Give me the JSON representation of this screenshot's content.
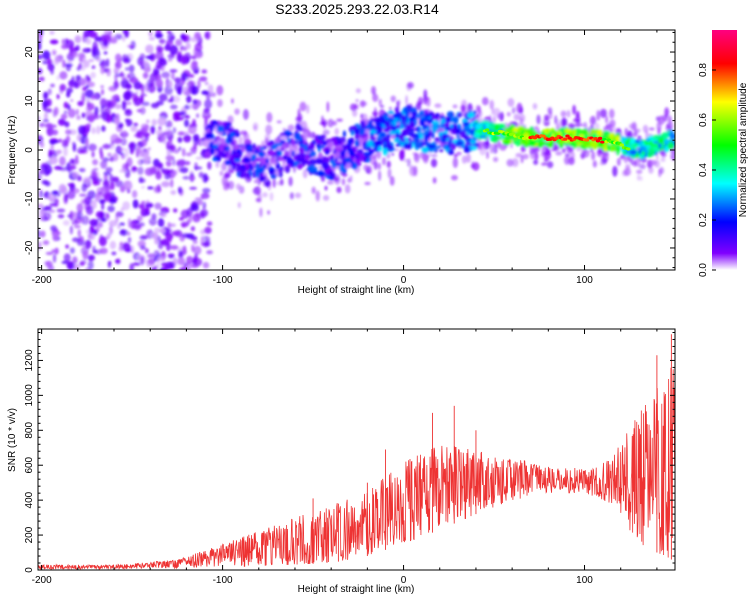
{
  "title": "S233.2025.293.22.03.R14",
  "chart_data": [
    {
      "type": "heatmap",
      "xlabel": "Height of straight line (km)",
      "ylabel": "Frequency (Hz)",
      "xlim": [
        -202,
        150
      ],
      "ylim": [
        -24.5,
        24.5
      ],
      "x_ticks": [
        -200,
        -100,
        0,
        100
      ],
      "x_tick_labels": [
        "-200",
        "-100",
        "0",
        "100"
      ],
      "y_ticks": [
        -20,
        -10,
        0,
        10,
        20
      ],
      "y_tick_labels": [
        "-20",
        "-10",
        "0",
        "10",
        "20"
      ],
      "ridge": [
        {
          "x": -100,
          "y": 2
        },
        {
          "x": -80,
          "y": -4
        },
        {
          "x": -60,
          "y": 1
        },
        {
          "x": -40,
          "y": -2
        },
        {
          "x": -20,
          "y": 2
        },
        {
          "x": 0,
          "y": 5
        },
        {
          "x": 20,
          "y": 3
        },
        {
          "x": 45,
          "y": 4
        },
        {
          "x": 70,
          "y": 2.5
        },
        {
          "x": 90,
          "y": 2.5
        },
        {
          "x": 110,
          "y": 2
        },
        {
          "x": 130,
          "y": 0
        },
        {
          "x": 148,
          "y": 2
        }
      ],
      "colorbar": {
        "label": "Normalized spectral amplitude",
        "range": [
          0,
          0.96
        ],
        "ticks": [
          0.0,
          0.2,
          0.4,
          0.6,
          0.8
        ],
        "tick_labels": [
          "0.0",
          "0.2",
          "0.4",
          "0.6",
          "0.8"
        ],
        "colors": [
          "#ffffff",
          "#8000ff",
          "#0000ff",
          "#00ffff",
          "#00ff00",
          "#ffff00",
          "#ff0000",
          "#ff0080"
        ]
      }
    },
    {
      "type": "line",
      "xlabel": "Height of straight line (km)",
      "ylabel": "SNR (10 * v/v)",
      "xlim": [
        -202,
        150
      ],
      "ylim": [
        0,
        1380
      ],
      "x_ticks": [
        -200,
        -100,
        0,
        100
      ],
      "x_tick_labels": [
        "-200",
        "-100",
        "0",
        "100"
      ],
      "y_ticks": [
        0,
        200,
        400,
        600,
        800,
        1000,
        1200
      ],
      "y_tick_labels": [
        "0",
        "200",
        "400",
        "600",
        "800",
        "1000",
        "1200"
      ],
      "color": "#ee3333",
      "envelope": [
        {
          "x": -202,
          "lo": 5,
          "hi": 30
        },
        {
          "x": -160,
          "lo": 5,
          "hi": 30
        },
        {
          "x": -125,
          "lo": 10,
          "hi": 60
        },
        {
          "x": -100,
          "lo": 20,
          "hi": 150
        },
        {
          "x": -80,
          "lo": 20,
          "hi": 230
        },
        {
          "x": -60,
          "lo": 30,
          "hi": 300
        },
        {
          "x": -40,
          "lo": 40,
          "hi": 370
        },
        {
          "x": -20,
          "lo": 80,
          "hi": 450
        },
        {
          "x": 0,
          "lo": 150,
          "hi": 620
        },
        {
          "x": 20,
          "lo": 230,
          "hi": 720
        },
        {
          "x": 40,
          "lo": 320,
          "hi": 700
        },
        {
          "x": 60,
          "lo": 400,
          "hi": 640
        },
        {
          "x": 80,
          "lo": 440,
          "hi": 600
        },
        {
          "x": 100,
          "lo": 440,
          "hi": 580
        },
        {
          "x": 115,
          "lo": 380,
          "hi": 640
        },
        {
          "x": 130,
          "lo": 150,
          "hi": 900
        },
        {
          "x": 150,
          "lo": 50,
          "hi": 1200
        }
      ],
      "peaks": [
        {
          "x": -50,
          "y": 410
        },
        {
          "x": -36,
          "y": 380
        },
        {
          "x": -20,
          "y": 500
        },
        {
          "x": -10,
          "y": 690
        },
        {
          "x": 16,
          "y": 900
        },
        {
          "x": 28,
          "y": 940
        },
        {
          "x": 40,
          "y": 800
        },
        {
          "x": 140,
          "y": 1230
        },
        {
          "x": 148,
          "y": 1350
        }
      ]
    }
  ]
}
